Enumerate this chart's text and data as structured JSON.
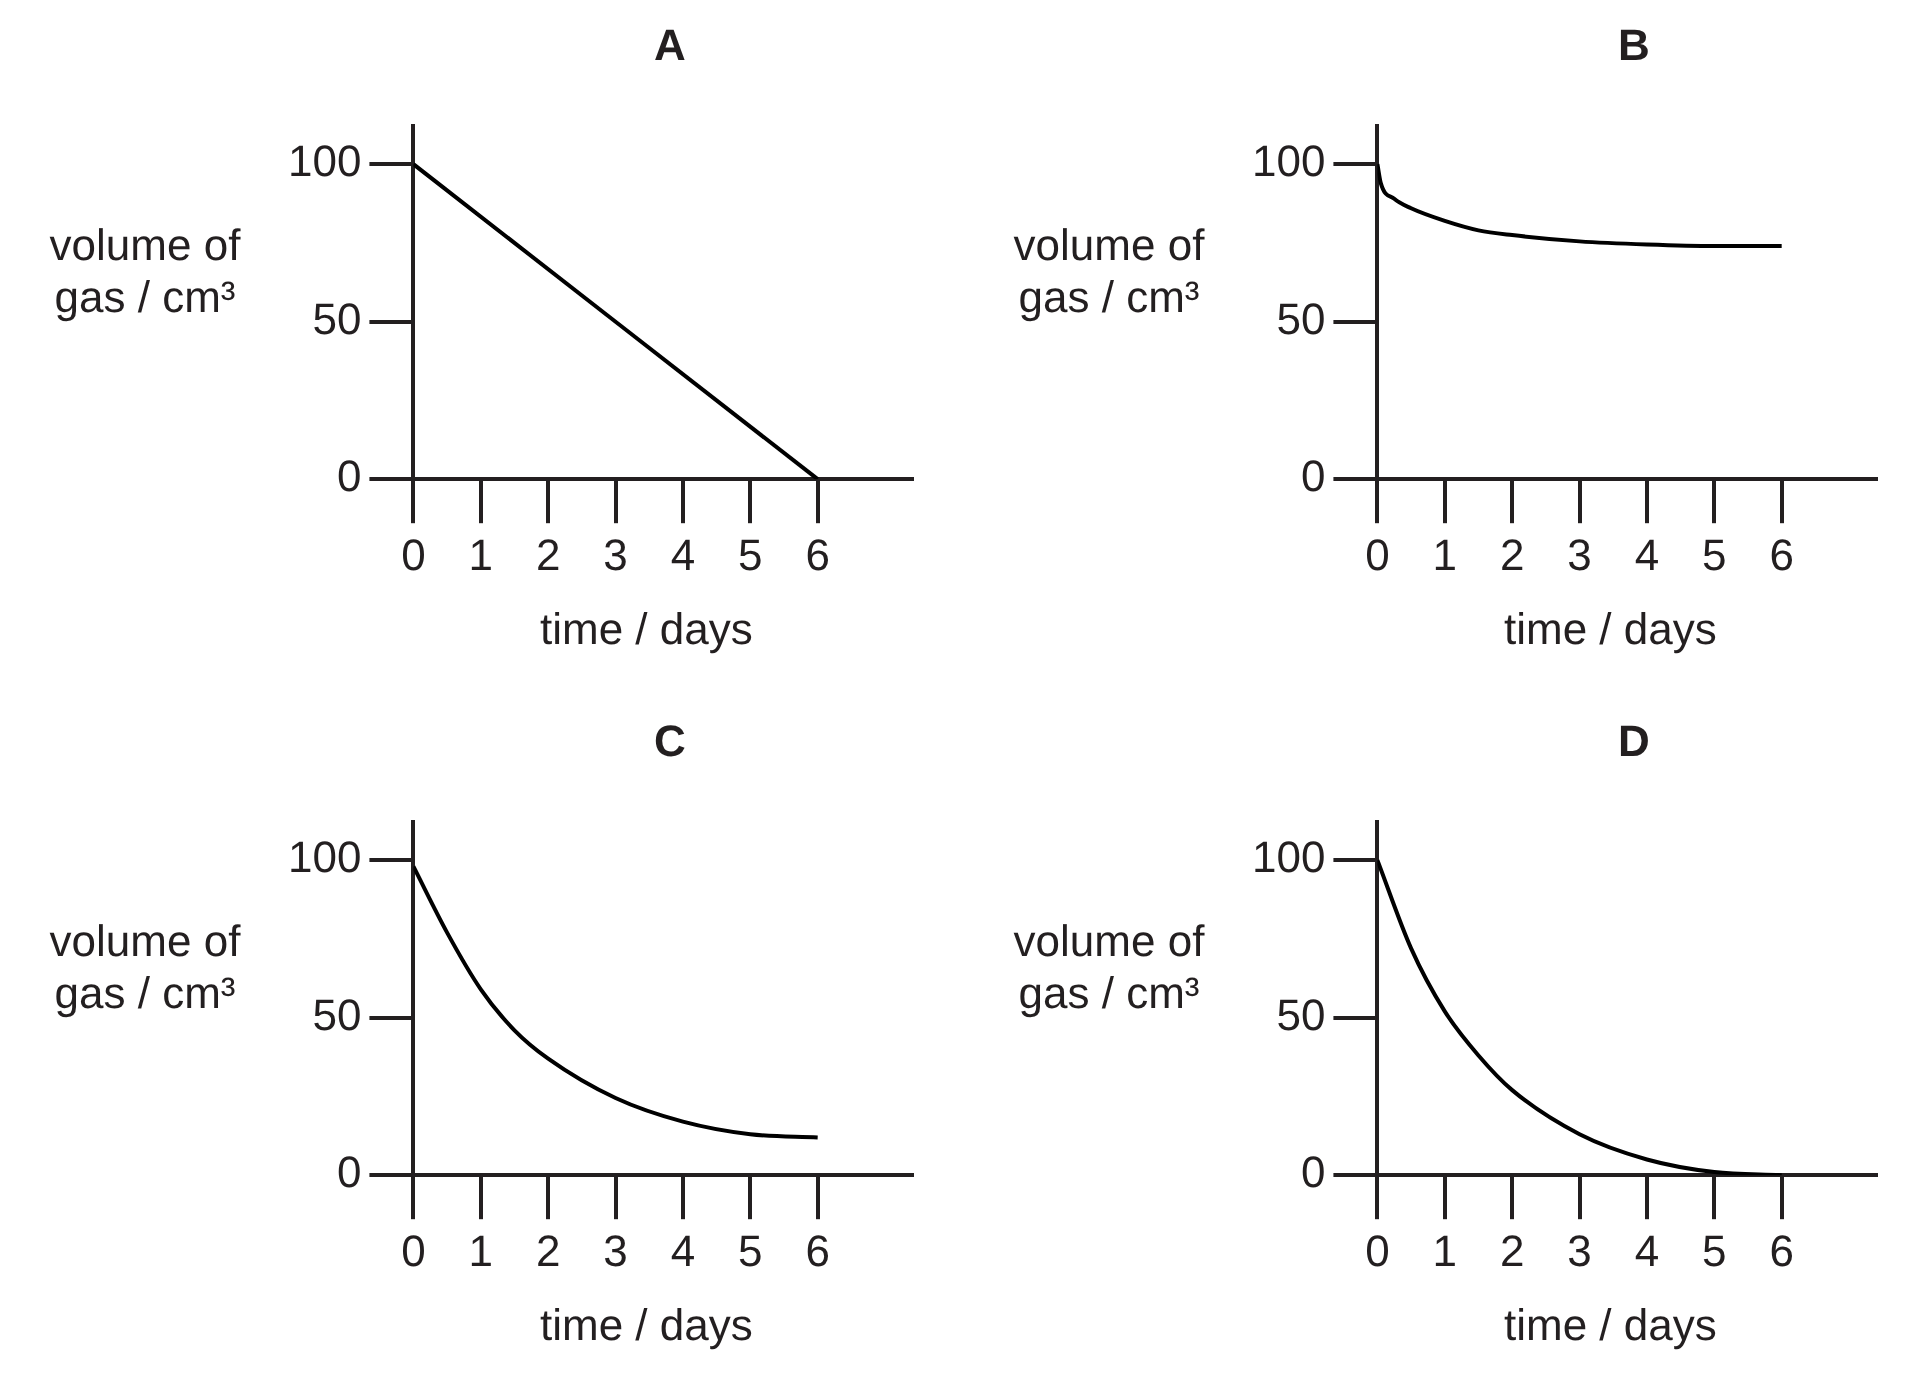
{
  "chart_data": [
    {
      "type": "line",
      "title": "A",
      "xlabel": "time / days",
      "ylabel": "volume of gas / cm³",
      "color": "#000000",
      "grid": false,
      "x": [
        0,
        6
      ],
      "values": [
        100,
        0
      ],
      "xlim": [
        0,
        7.4
      ],
      "ylim": [
        0,
        112
      ],
      "xticks": [
        0,
        1,
        2,
        3,
        4,
        5,
        6
      ],
      "yticks": [
        0,
        50,
        100
      ]
    },
    {
      "type": "line",
      "title": "B",
      "xlabel": "time / days",
      "ylabel": "volume of gas / cm³",
      "color": "#000000",
      "grid": false,
      "x": [
        0,
        0.05,
        0.25,
        0.5,
        1,
        1.5,
        2,
        3,
        4,
        5,
        6
      ],
      "values": [
        100,
        94,
        89,
        86,
        82,
        79,
        77.5,
        75.5,
        74.5,
        74,
        74
      ],
      "xlim": [
        0,
        7.4
      ],
      "ylim": [
        0,
        112
      ],
      "xticks": [
        0,
        1,
        2,
        3,
        4,
        5,
        6
      ],
      "yticks": [
        0,
        50,
        100
      ]
    },
    {
      "type": "line",
      "title": "C",
      "xlabel": "time / days",
      "ylabel": "volume of gas / cm³",
      "color": "#000000",
      "grid": false,
      "x": [
        0,
        0.5,
        1,
        1.5,
        2,
        3,
        4,
        5,
        6
      ],
      "values": [
        98,
        77,
        59,
        46,
        37,
        24.5,
        17,
        13,
        12
      ],
      "xlim": [
        0,
        7.4
      ],
      "ylim": [
        0,
        112
      ],
      "xticks": [
        0,
        1,
        2,
        3,
        4,
        5,
        6
      ],
      "yticks": [
        0,
        50,
        100
      ]
    },
    {
      "type": "line",
      "title": "D",
      "xlabel": "time / days",
      "ylabel": "volume of gas / cm³",
      "color": "#000000",
      "grid": false,
      "x": [
        0,
        0.5,
        1,
        1.5,
        2,
        3,
        4,
        5,
        6
      ],
      "values": [
        100,
        72,
        52,
        38,
        27,
        13,
        5,
        1,
        0
      ],
      "xlim": [
        0,
        7.4
      ],
      "ylim": [
        0,
        112
      ],
      "xticks": [
        0,
        1,
        2,
        3,
        4,
        5,
        6
      ],
      "yticks": [
        0,
        50,
        100
      ]
    }
  ]
}
